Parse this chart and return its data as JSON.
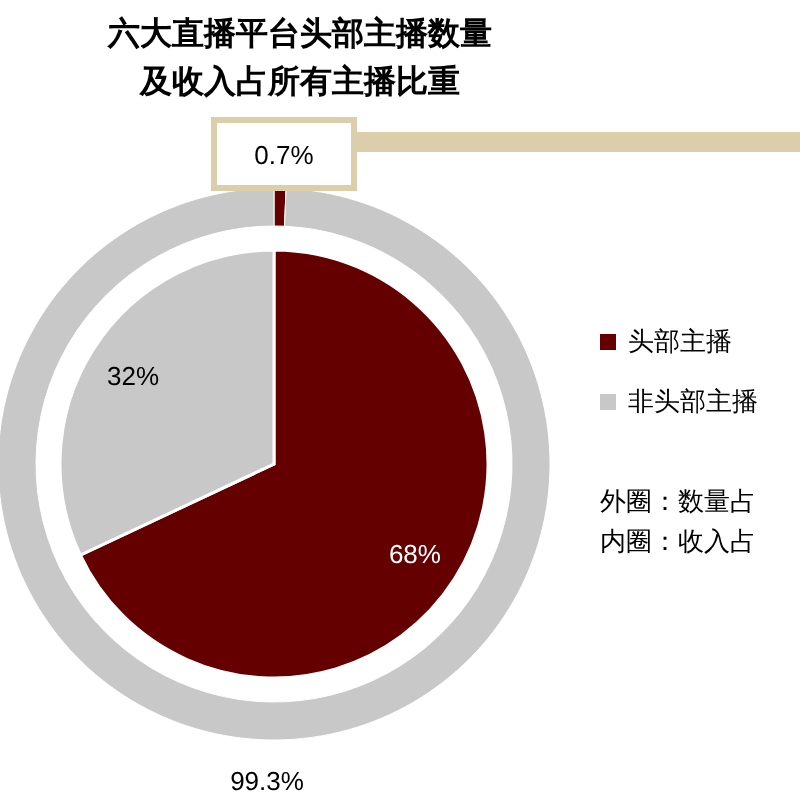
{
  "chart_data": {
    "type": "donut",
    "title": "六大直播平台头部主播数量及收入占所有主播比重",
    "categories": [
      "头部主播",
      "非头部主播"
    ],
    "colors": [
      "#650000",
      "#c8c8c8"
    ],
    "series": [
      {
        "values": [
          0.7,
          99.3
        ],
        "value_labels": [
          "0.7%",
          "99.3%"
        ]
      },
      {
        "type": "pie",
        "values": [
          68,
          32
        ],
        "value_labels": [
          "68%",
          "32%"
        ]
      }
    ],
    "legend": "right",
    "annotations": [
      "外圈：数量占",
      "内圈：收入占"
    ]
  }
}
